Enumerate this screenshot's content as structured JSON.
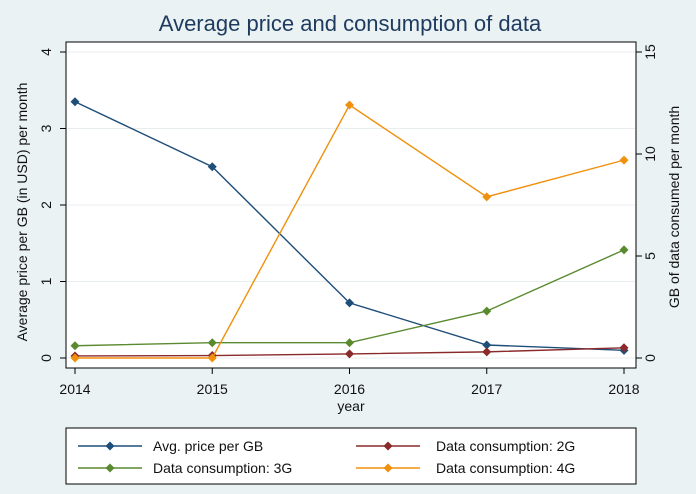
{
  "chart_data": {
    "type": "line",
    "title": "Average price and consumption of data",
    "xlabel": "year",
    "ylabel_left": "Average price per GB (in USD) per month",
    "ylabel_right": "GB of data consumed per month",
    "x": [
      2014,
      2015,
      2016,
      2017,
      2018
    ],
    "xlim": [
      2014,
      2018
    ],
    "ylim_left": [
      0,
      4
    ],
    "ylim_right": [
      0,
      15
    ],
    "yticks_left": [
      0,
      1,
      2,
      3,
      4
    ],
    "yticks_right": [
      0,
      5,
      10,
      15
    ],
    "grid": "horizontal",
    "legend_position": "bottom",
    "series": [
      {
        "name": "Avg. price per GB",
        "axis": "left",
        "color": "#1f4e79",
        "values": [
          3.35,
          2.5,
          0.72,
          0.17,
          0.1
        ]
      },
      {
        "name": "Data consumption: 2G",
        "axis": "right",
        "color": "#8b2a2a",
        "values": [
          0.1,
          0.12,
          0.2,
          0.3,
          0.5
        ]
      },
      {
        "name": "Data consumption: 3G",
        "axis": "right",
        "color": "#5a8a2f",
        "values": [
          0.6,
          0.75,
          0.75,
          2.3,
          5.3
        ]
      },
      {
        "name": "Data consumption: 4G",
        "axis": "right",
        "color": "#f0900c",
        "values": [
          0.0,
          0.0,
          12.4,
          7.9,
          9.7
        ]
      }
    ]
  }
}
